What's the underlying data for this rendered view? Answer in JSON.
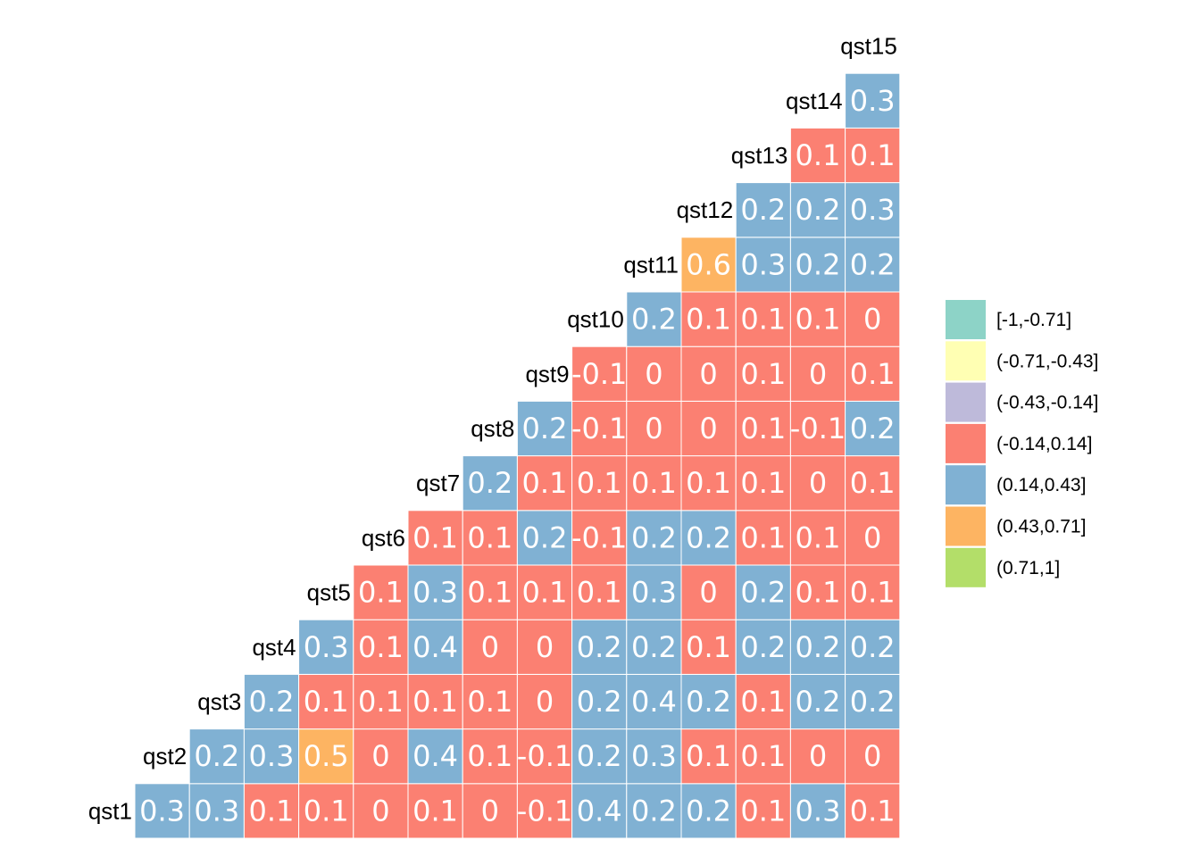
{
  "chart_data": {
    "type": "heatmap",
    "layout": "lower-triangle correlation matrix (rows bottom to top, columns left to right)",
    "row_labels": [
      "qst1",
      "qst2",
      "qst3",
      "qst4",
      "qst5",
      "qst6",
      "qst7",
      "qst8",
      "qst9",
      "qst10",
      "qst11",
      "qst12",
      "qst13",
      "qst14",
      "qst15"
    ],
    "rows": [
      {
        "label": "qst1",
        "values": [
          0.3,
          0.3,
          0.1,
          0.1,
          0,
          0.1,
          0,
          -0.1,
          0.4,
          0.2,
          0.2,
          0.1,
          0.3,
          0.1
        ]
      },
      {
        "label": "qst2",
        "values": [
          0.2,
          0.3,
          0.5,
          0,
          0.4,
          0.1,
          -0.1,
          0.2,
          0.3,
          0.1,
          0.1,
          0,
          0
        ]
      },
      {
        "label": "qst3",
        "values": [
          0.2,
          0.1,
          0.1,
          0.1,
          0.1,
          0,
          0.2,
          0.4,
          0.2,
          0.1,
          0.2,
          0.2
        ]
      },
      {
        "label": "qst4",
        "values": [
          0.3,
          0.1,
          0.4,
          0,
          0,
          0.2,
          0.2,
          0.1,
          0.2,
          0.2,
          0.2
        ]
      },
      {
        "label": "qst5",
        "values": [
          0.1,
          0.3,
          0.1,
          0.1,
          0.1,
          0.3,
          0,
          0.2,
          0.1,
          0.1
        ]
      },
      {
        "label": "qst6",
        "values": [
          0.1,
          0.1,
          0.2,
          -0.1,
          0.2,
          0.2,
          0.1,
          0.1,
          0
        ]
      },
      {
        "label": "qst7",
        "values": [
          0.2,
          0.1,
          0.1,
          0.1,
          0.1,
          0.1,
          0,
          0.1
        ]
      },
      {
        "label": "qst8",
        "values": [
          0.2,
          -0.1,
          0,
          0,
          0.1,
          -0.1,
          0.2
        ]
      },
      {
        "label": "qst9",
        "values": [
          -0.1,
          0,
          0,
          0.1,
          0,
          0.1
        ]
      },
      {
        "label": "qst10",
        "values": [
          0.2,
          0.1,
          0.1,
          0.1,
          0
        ]
      },
      {
        "label": "qst11",
        "values": [
          0.6,
          0.3,
          0.2,
          0.2
        ]
      },
      {
        "label": "qst12",
        "values": [
          0.2,
          0.2,
          0.3
        ]
      },
      {
        "label": "qst13",
        "values": [
          0.1,
          0.1
        ]
      },
      {
        "label": "qst14",
        "values": [
          0.3
        ]
      },
      {
        "label": "qst15",
        "values": []
      }
    ],
    "legend": [
      {
        "label": "[-1,-0.71]",
        "color": "#8DD3C7",
        "min": -1,
        "max": -0.71
      },
      {
        "label": "(-0.71,-0.43]",
        "color": "#FFFFB3",
        "min": -0.71,
        "max": -0.43
      },
      {
        "label": "(-0.43,-0.14]",
        "color": "#BEBADA",
        "min": -0.43,
        "max": -0.14
      },
      {
        "label": "(-0.14,0.14]",
        "color": "#FB8072",
        "min": -0.14,
        "max": 0.14
      },
      {
        "label": "(0.14,0.43]",
        "color": "#80B1D3",
        "min": 0.14,
        "max": 0.43
      },
      {
        "label": "(0.43,0.71]",
        "color": "#FDB462",
        "min": 0.43,
        "max": 0.71
      },
      {
        "label": "(0.71,1]",
        "color": "#B3DE69",
        "min": 0.71,
        "max": 1
      }
    ],
    "legend_placement": "right",
    "grid": false
  }
}
